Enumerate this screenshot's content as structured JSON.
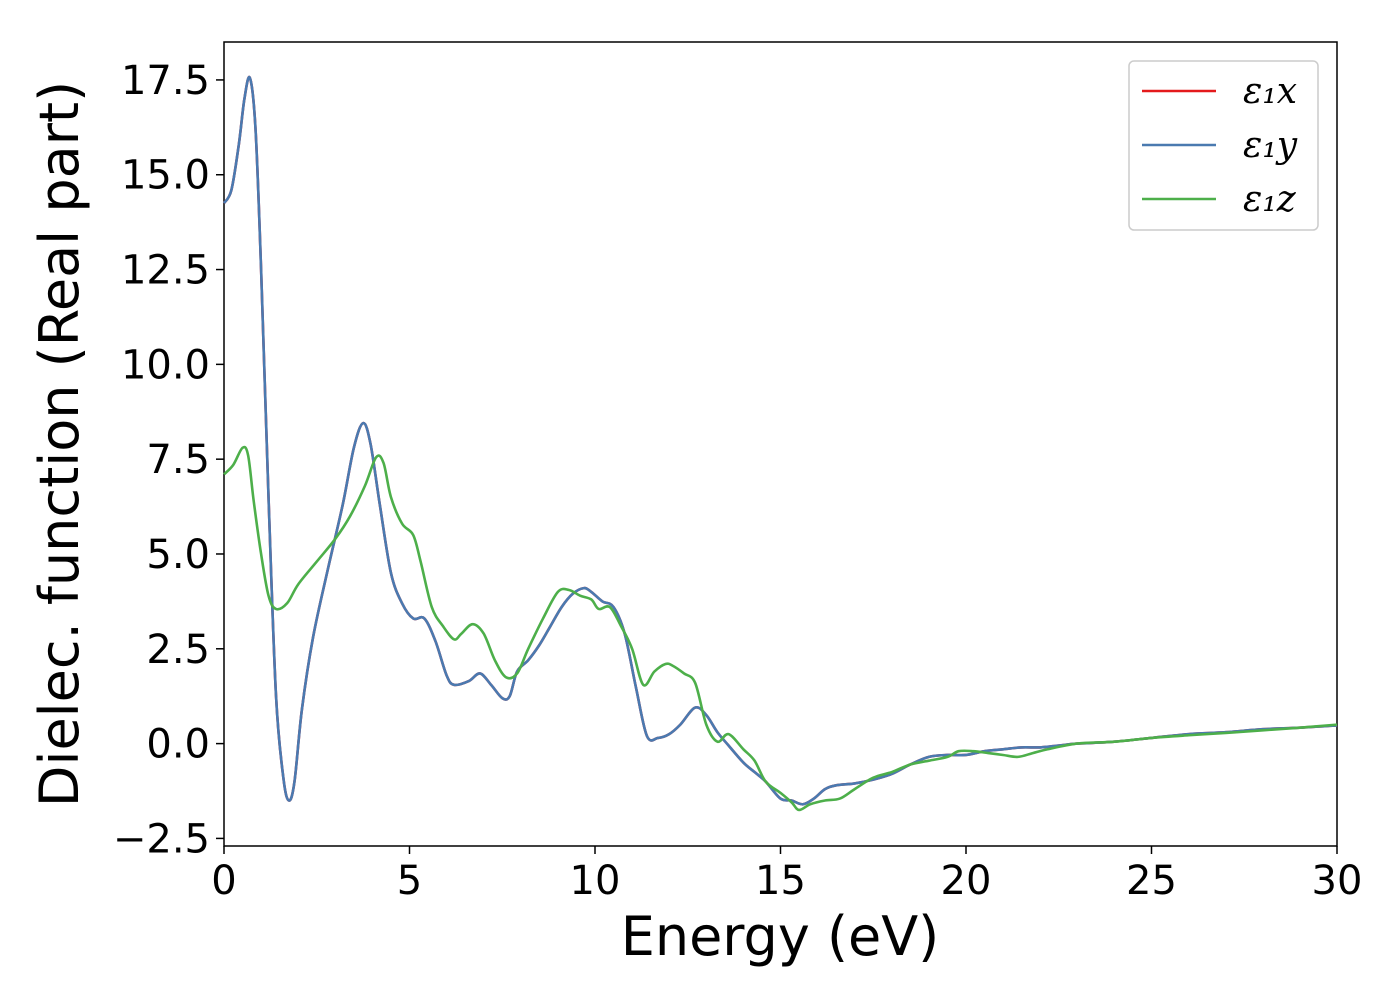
{
  "chart_data": {
    "type": "line",
    "xlabel": "Energy (eV)",
    "ylabel": "Dielec. function (Real part)",
    "xlim": [
      0,
      30
    ],
    "ylim": [
      -2.7,
      18.5
    ],
    "xticks": [
      0,
      5,
      10,
      15,
      20,
      25,
      30
    ],
    "xtick_labels": [
      "0",
      "5",
      "10",
      "15",
      "20",
      "25",
      "30"
    ],
    "yticks": [
      -2.5,
      0.0,
      2.5,
      5.0,
      7.5,
      10.0,
      12.5,
      15.0,
      17.5
    ],
    "ytick_labels": [
      "−2.5",
      "0.0",
      "2.5",
      "5.0",
      "7.5",
      "10.0",
      "12.5",
      "15.0",
      "17.5"
    ],
    "grid": false,
    "legend_position": "top-right",
    "series": [
      {
        "name": "ε₁x",
        "color": "#e41a1c",
        "x": [
          0,
          0.2,
          0.4,
          0.55,
          0.7,
          0.85,
          1.0,
          1.2,
          1.4,
          1.6,
          1.75,
          1.9,
          2.1,
          2.4,
          2.8,
          3.2,
          3.5,
          3.75,
          3.95,
          4.2,
          4.5,
          4.8,
          5.1,
          5.4,
          5.7,
          6.0,
          6.2,
          6.6,
          6.9,
          7.2,
          7.5,
          7.7,
          7.9,
          8.2,
          8.5,
          8.8,
          9.1,
          9.4,
          9.7,
          9.9,
          10.2,
          10.5,
          10.8,
          11.1,
          11.4,
          11.7,
          12.0,
          12.3,
          12.7,
          13.0,
          13.3,
          13.6,
          14.0,
          14.3,
          14.6,
          15.0,
          15.3,
          15.6,
          15.9,
          16.2,
          16.5,
          17.0,
          17.5,
          18.0,
          18.5,
          19.0,
          19.5,
          20.0,
          20.5,
          21.0,
          21.5,
          22.0,
          22.5,
          23.0,
          24.0,
          25.0,
          26.0,
          27.0,
          28.0,
          29.0,
          30.0
        ],
        "y": [
          14.25,
          14.6,
          15.8,
          17.0,
          17.55,
          16.2,
          12.5,
          6.5,
          1.3,
          -0.9,
          -1.5,
          -1.0,
          0.9,
          2.8,
          4.6,
          6.3,
          7.8,
          8.45,
          7.9,
          6.3,
          4.5,
          3.7,
          3.3,
          3.3,
          2.7,
          1.8,
          1.55,
          1.65,
          1.85,
          1.55,
          1.2,
          1.25,
          1.9,
          2.2,
          2.6,
          3.1,
          3.6,
          3.95,
          4.1,
          4.0,
          3.75,
          3.6,
          2.9,
          1.5,
          0.2,
          0.15,
          0.25,
          0.5,
          0.95,
          0.75,
          0.3,
          -0.05,
          -0.5,
          -0.75,
          -1.0,
          -1.45,
          -1.5,
          -1.6,
          -1.45,
          -1.2,
          -1.1,
          -1.05,
          -0.95,
          -0.8,
          -0.55,
          -0.35,
          -0.3,
          -0.3,
          -0.2,
          -0.15,
          -0.1,
          -0.1,
          -0.05,
          0.0,
          0.05,
          0.15,
          0.25,
          0.3,
          0.38,
          0.42,
          0.48
        ]
      },
      {
        "name": "ε₁y",
        "color": "#4a7ab0",
        "x": [
          0,
          0.2,
          0.4,
          0.55,
          0.7,
          0.85,
          1.0,
          1.2,
          1.4,
          1.6,
          1.75,
          1.9,
          2.1,
          2.4,
          2.8,
          3.2,
          3.5,
          3.75,
          3.95,
          4.2,
          4.5,
          4.8,
          5.1,
          5.4,
          5.7,
          6.0,
          6.2,
          6.6,
          6.9,
          7.2,
          7.5,
          7.7,
          7.9,
          8.2,
          8.5,
          8.8,
          9.1,
          9.4,
          9.7,
          9.9,
          10.2,
          10.5,
          10.8,
          11.1,
          11.4,
          11.7,
          12.0,
          12.3,
          12.7,
          13.0,
          13.3,
          13.6,
          14.0,
          14.3,
          14.6,
          15.0,
          15.3,
          15.6,
          15.9,
          16.2,
          16.5,
          17.0,
          17.5,
          18.0,
          18.5,
          19.0,
          19.5,
          20.0,
          20.5,
          21.0,
          21.5,
          22.0,
          22.5,
          23.0,
          24.0,
          25.0,
          26.0,
          27.0,
          28.0,
          29.0,
          30.0
        ],
        "y": [
          14.25,
          14.6,
          15.8,
          17.0,
          17.55,
          16.2,
          12.5,
          6.5,
          1.3,
          -0.9,
          -1.5,
          -1.0,
          0.9,
          2.8,
          4.6,
          6.3,
          7.8,
          8.45,
          7.9,
          6.3,
          4.5,
          3.7,
          3.3,
          3.3,
          2.7,
          1.8,
          1.55,
          1.65,
          1.85,
          1.55,
          1.2,
          1.25,
          1.9,
          2.2,
          2.6,
          3.1,
          3.6,
          3.95,
          4.1,
          4.0,
          3.75,
          3.6,
          2.9,
          1.5,
          0.2,
          0.15,
          0.25,
          0.5,
          0.95,
          0.75,
          0.3,
          -0.05,
          -0.5,
          -0.75,
          -1.0,
          -1.45,
          -1.5,
          -1.6,
          -1.45,
          -1.2,
          -1.1,
          -1.05,
          -0.95,
          -0.8,
          -0.55,
          -0.35,
          -0.3,
          -0.3,
          -0.2,
          -0.15,
          -0.1,
          -0.1,
          -0.05,
          0.0,
          0.05,
          0.15,
          0.25,
          0.3,
          0.38,
          0.42,
          0.48
        ]
      },
      {
        "name": "ε₁z",
        "color": "#4daf4a",
        "x": [
          0,
          0.25,
          0.5,
          0.65,
          0.8,
          1.0,
          1.2,
          1.4,
          1.7,
          2.0,
          2.5,
          3.0,
          3.4,
          3.8,
          4.1,
          4.3,
          4.5,
          4.8,
          5.1,
          5.3,
          5.6,
          5.9,
          6.2,
          6.4,
          6.7,
          7.0,
          7.3,
          7.6,
          7.9,
          8.2,
          8.6,
          9.0,
          9.3,
          9.6,
          9.9,
          10.1,
          10.4,
          10.7,
          11.0,
          11.3,
          11.6,
          11.9,
          12.1,
          12.4,
          12.7,
          13.0,
          13.3,
          13.6,
          14.0,
          14.3,
          14.6,
          15.0,
          15.3,
          15.5,
          15.8,
          16.2,
          16.6,
          17.0,
          17.5,
          18.0,
          18.5,
          19.0,
          19.5,
          19.8,
          20.2,
          20.6,
          21.0,
          21.4,
          21.8,
          22.2,
          23.0,
          24.0,
          25.0,
          26.0,
          27.0,
          28.0,
          29.0,
          30.0
        ],
        "y": [
          7.1,
          7.35,
          7.8,
          7.6,
          6.4,
          5.0,
          3.9,
          3.55,
          3.7,
          4.2,
          4.8,
          5.4,
          6.0,
          6.8,
          7.55,
          7.4,
          6.5,
          5.8,
          5.5,
          4.8,
          3.6,
          3.1,
          2.75,
          2.9,
          3.15,
          2.9,
          2.2,
          1.75,
          1.85,
          2.5,
          3.3,
          4.0,
          4.05,
          3.9,
          3.8,
          3.55,
          3.6,
          3.1,
          2.5,
          1.55,
          1.9,
          2.1,
          2.05,
          1.85,
          1.6,
          0.5,
          0.05,
          0.25,
          -0.15,
          -0.45,
          -1.0,
          -1.3,
          -1.55,
          -1.75,
          -1.6,
          -1.5,
          -1.45,
          -1.2,
          -0.9,
          -0.75,
          -0.55,
          -0.45,
          -0.35,
          -0.2,
          -0.2,
          -0.25,
          -0.3,
          -0.35,
          -0.25,
          -0.15,
          0.0,
          0.05,
          0.15,
          0.22,
          0.28,
          0.35,
          0.42,
          0.5
        ]
      }
    ]
  }
}
